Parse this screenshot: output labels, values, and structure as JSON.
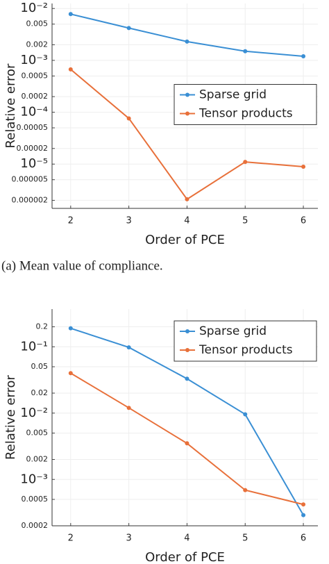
{
  "chart_data": [
    {
      "type": "line",
      "log_y": true,
      "grid": true,
      "legend": "right",
      "xlabel": "Order of PCE",
      "ylabel": "Relative error",
      "caption": "(a) Mean value of compliance.",
      "x": [
        2,
        3,
        4,
        5,
        6
      ],
      "xlim": [
        1.68,
        6.25
      ],
      "xticks": [
        2,
        3,
        4,
        5,
        6
      ],
      "ylim": [
        1.4e-06,
        0.0125
      ],
      "yticks": [
        {
          "value": 0.01,
          "label": "10⁻²"
        },
        0.005,
        0.002,
        {
          "value": 0.001,
          "label": "10⁻³"
        },
        0.0005,
        0.0002,
        {
          "value": 0.0001,
          "label": "10⁻⁴"
        },
        5e-05,
        2e-05,
        {
          "value": 1e-05,
          "label": "10⁻⁵"
        },
        5e-06,
        2e-06
      ],
      "series": [
        {
          "name": "Sparse grid",
          "color": "#3a8fd4",
          "values": [
            0.0078,
            0.0042,
            0.0023,
            0.0015,
            0.0012
          ]
        },
        {
          "name": "Tensor products",
          "color": "#e8703a",
          "values": [
            0.00067,
            7.6e-05,
            2.1e-06,
            1.1e-05,
            8.9e-06
          ]
        }
      ]
    },
    {
      "type": "line",
      "log_y": true,
      "grid": true,
      "legend": "upper right",
      "xlabel": "Order of PCE",
      "ylabel": "Relative error",
      "x": [
        2,
        3,
        4,
        5,
        6
      ],
      "xlim": [
        1.68,
        6.25
      ],
      "xticks": [
        2,
        3,
        4,
        5,
        6
      ],
      "ylim": [
        0.0002,
        0.37
      ],
      "yticks": [
        0.2,
        {
          "value": 0.1,
          "label": "10⁻¹"
        },
        0.05,
        0.02,
        {
          "value": 0.01,
          "label": "10⁻²"
        },
        0.005,
        0.002,
        {
          "value": 0.001,
          "label": "10⁻³"
        },
        0.0005,
        0.0002
      ],
      "series": [
        {
          "name": "Sparse grid",
          "color": "#3a8fd4",
          "values": [
            0.19,
            0.098,
            0.033,
            0.0096,
            0.00029
          ]
        },
        {
          "name": "Tensor products",
          "color": "#e8703a",
          "values": [
            0.04,
            0.012,
            0.0035,
            0.00069,
            0.00042
          ]
        }
      ]
    }
  ]
}
